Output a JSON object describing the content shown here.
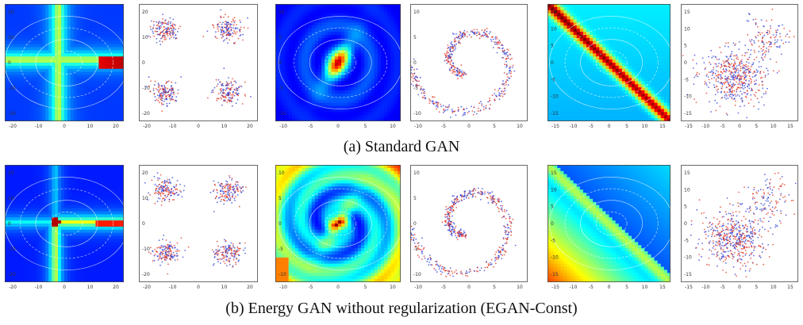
{
  "captions": {
    "a": "(a) Standard GAN",
    "b": "(b) Energy GAN without regularization (EGAN-Const)"
  },
  "rows": [
    {
      "panels": [
        {
          "kind": "energy",
          "pattern": "cross",
          "xticks": [
            "-20",
            "-10",
            "0",
            "10",
            "20"
          ],
          "yticks": [
            "20",
            "10",
            "0",
            "-10",
            "-20"
          ]
        },
        {
          "kind": "scatter",
          "pattern": "four-gaussians",
          "xticks": [
            "-20",
            "-10",
            "0",
            "10",
            "20"
          ],
          "yticks": [
            "20",
            "10",
            "0",
            "-10",
            "-20"
          ]
        },
        {
          "kind": "energy",
          "pattern": "spiral-hotspot",
          "xticks": [
            "-10",
            "-5",
            "0",
            "5",
            "10"
          ],
          "yticks": [
            "10",
            "5",
            "0",
            "-5",
            "-10"
          ]
        },
        {
          "kind": "scatter",
          "pattern": "swiss-roll",
          "xticks": [
            "-10",
            "-5",
            "0",
            "5",
            "10"
          ],
          "yticks": [
            "10",
            "5",
            "0",
            "-5",
            "-10"
          ]
        },
        {
          "kind": "energy",
          "pattern": "diagonal-ridge",
          "xticks": [
            "-15",
            "-10",
            "-5",
            "0",
            "5",
            "10",
            "15"
          ],
          "yticks": [
            "15",
            "10",
            "5",
            "0",
            "-5",
            "-10",
            "-15"
          ]
        },
        {
          "kind": "scatter",
          "pattern": "blob",
          "xticks": [
            "-15",
            "-10",
            "-5",
            "0",
            "5",
            "10",
            "15"
          ],
          "yticks": [
            "15",
            "10",
            "5",
            "0",
            "-5",
            "-10",
            "-15"
          ]
        }
      ]
    },
    {
      "panels": [
        {
          "kind": "energy",
          "pattern": "cross-point",
          "xticks": [
            "-20",
            "-10",
            "0",
            "10",
            "20"
          ],
          "yticks": [
            "20",
            "10",
            "0",
            "-10",
            "-20"
          ]
        },
        {
          "kind": "scatter",
          "pattern": "four-gaussians",
          "xticks": [
            "-20",
            "-10",
            "0",
            "10",
            "20"
          ],
          "yticks": [
            "20",
            "10",
            "0",
            "-10",
            "-20"
          ]
        },
        {
          "kind": "energy",
          "pattern": "spiral-warm",
          "xticks": [
            "-10",
            "-5",
            "0",
            "5",
            "10"
          ],
          "yticks": [
            "10",
            "5",
            "0",
            "-5",
            "-10"
          ]
        },
        {
          "kind": "scatter",
          "pattern": "swiss-roll",
          "xticks": [
            "-10",
            "-5",
            "0",
            "5",
            "10"
          ],
          "yticks": [
            "10",
            "5",
            "0",
            "-5",
            "-10"
          ]
        },
        {
          "kind": "energy",
          "pattern": "diagonal-warm",
          "xticks": [
            "-15",
            "-10",
            "-5",
            "0",
            "5",
            "10",
            "15"
          ],
          "yticks": [
            "15",
            "10",
            "5",
            "0",
            "-5",
            "-10",
            "-15"
          ]
        },
        {
          "kind": "scatter",
          "pattern": "blob",
          "xticks": [
            "-15",
            "-10",
            "-5",
            "0",
            "5",
            "10",
            "15"
          ],
          "yticks": [
            "15",
            "10",
            "5",
            "0",
            "-5",
            "-10",
            "-15"
          ]
        }
      ]
    }
  ],
  "colors": {
    "red": "#e0301e",
    "blue": "#2a3bd6",
    "deep": "#00008b",
    "cyan": "#00ffff",
    "warm": "#ff3300"
  }
}
